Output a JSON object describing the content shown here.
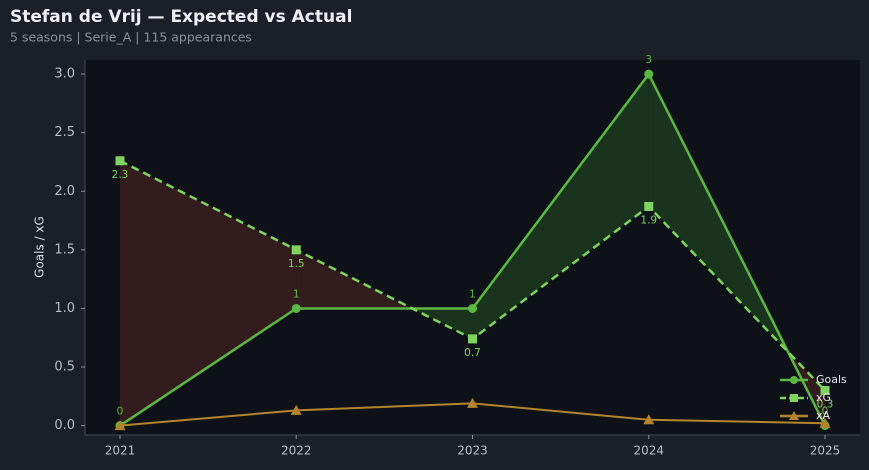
{
  "chart_data": {
    "type": "line",
    "title": "Stefan de Vrij — Expected vs Actual",
    "subtitle": "5 seasons | Serie_A | 115 appearances",
    "y_label": "Goals / xG",
    "categories": [
      "2021",
      "2022",
      "2023",
      "2024",
      "2025"
    ],
    "series": [
      {
        "name": "Goals",
        "color": "#5bb843",
        "marker": "circle",
        "dash": false,
        "values": [
          0,
          1,
          1,
          3,
          0
        ],
        "label_pos": "above"
      },
      {
        "name": "xG",
        "color": "#7fd35f",
        "marker": "square",
        "dash": true,
        "values": [
          2.26,
          1.5,
          0.74,
          1.87,
          0.3
        ],
        "value_labels": [
          "2.3",
          "1.5",
          "0.7",
          "1.9",
          "0.3"
        ],
        "label_pos": "below"
      },
      {
        "name": "xA",
        "color": "#b3842c",
        "marker": "triangle",
        "dash": false,
        "values": [
          0,
          0.13,
          0.19,
          0.05,
          0.02
        ]
      }
    ],
    "fill_between": {
      "above_color": "#1c3a1e",
      "below_color": "#3a1e1e"
    },
    "ylim": [
      -0.08,
      3.12
    ],
    "yticks": [
      {
        "value": 0,
        "label": "0.0"
      },
      {
        "value": 0.5,
        "label": "0.5"
      },
      {
        "value": 1,
        "label": "1.0"
      },
      {
        "value": 1.5,
        "label": "1.5"
      },
      {
        "value": 2,
        "label": "2.0"
      },
      {
        "value": 2.5,
        "label": "2.5"
      },
      {
        "value": 3,
        "label": "3.0"
      }
    ],
    "grid": false,
    "legend": "lower right"
  }
}
